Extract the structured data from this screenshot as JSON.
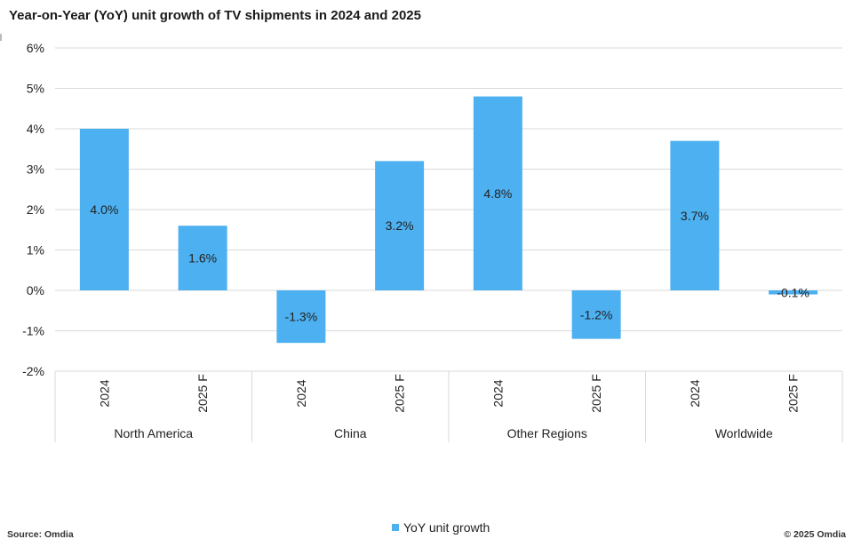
{
  "title": "Year-on-Year (YoY) unit growth of TV shipments in 2024 and 2025",
  "source": "Source: Omdia",
  "copyright": "© 2025 Omdia",
  "legend_label": "YoY unit growth",
  "colors": {
    "bar": "#4db0f0",
    "grid": "#d9d9d9",
    "axis": "#d9d9d9",
    "text": "#222222"
  },
  "chart_data": {
    "type": "bar",
    "title": "Year-on-Year (YoY) unit growth of TV shipments in 2024 and 2025",
    "xlabel": "",
    "ylabel": "",
    "ylim": [
      -2,
      6
    ],
    "yticks": [
      "6%",
      "5%",
      "4%",
      "3%",
      "2%",
      "1%",
      "0%",
      "-1%",
      "-2%"
    ],
    "ytick_values": [
      6,
      5,
      4,
      3,
      2,
      1,
      0,
      -1,
      -2
    ],
    "groups": [
      "North America",
      "China",
      "Other Regions",
      "Worldwide"
    ],
    "categories": [
      "2024",
      "2025 F",
      "2024",
      "2025 F",
      "2024",
      "2025 F",
      "2024",
      "2025 F"
    ],
    "series": [
      {
        "name": "YoY unit growth",
        "values": [
          4.0,
          1.6,
          -1.3,
          3.2,
          4.8,
          -1.2,
          3.7,
          -0.1
        ],
        "labels": [
          "4.0%",
          "1.6%",
          "-1.3%",
          "3.2%",
          "4.8%",
          "-1.2%",
          "3.7%",
          "-0.1%"
        ]
      }
    ],
    "grid": true,
    "legend_position": "bottom"
  }
}
